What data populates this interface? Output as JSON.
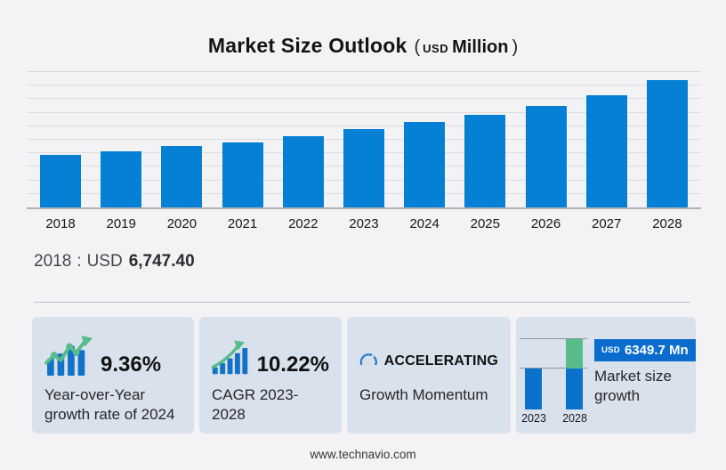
{
  "header": {
    "title": "Market Size Outlook",
    "paren_open": "(",
    "unit_currency": "USD",
    "unit_label": "Million",
    "paren_close": ")"
  },
  "chart_data": {
    "type": "bar",
    "title": "Market Size Outlook (USD Million)",
    "categories": [
      "2018",
      "2019",
      "2020",
      "2021",
      "2022",
      "2023",
      "2024",
      "2025",
      "2026",
      "2027",
      "2028"
    ],
    "values": [
      6747.4,
      7210,
      7890,
      8460,
      9180,
      10133.1,
      11081.6,
      11950,
      13150,
      14470,
      16482.8
    ],
    "xlabel": "",
    "ylabel": "",
    "ylim": [
      0,
      17500
    ],
    "grid": true,
    "legend": false,
    "bar_color": "#0680d4"
  },
  "callout": {
    "year": "2018",
    "separator": ":",
    "currency": "USD",
    "value": "6,747.40"
  },
  "cards": [
    {
      "icon": "bars-uptrend-icon",
      "stat": "9.36%",
      "label": "Year-over-Year growth rate of 2024"
    },
    {
      "icon": "ascending-bars-arrow-icon",
      "stat": "10.22%",
      "label": "CAGR 2023-2028"
    },
    {
      "icon": "gauge-icon",
      "stat": "ACCELERATING",
      "label": "Growth Momentum"
    },
    {
      "icon": "growth-comparison-bars-icon",
      "badge_currency": "USD",
      "badge_value": "6349.7 Mn",
      "label": "Market size growth",
      "mini_chart": {
        "type": "bar",
        "years": [
          "2023",
          "2028"
        ],
        "base_value": 10133.1,
        "end_value": 16482.8,
        "growth": 6349.7
      }
    }
  ],
  "footer": {
    "url": "www.technavio.com"
  },
  "colors": {
    "page_bg": "#f3f3f5",
    "bar_blue": "#0680d4",
    "icon_blue": "#1172c8",
    "mini_bar_blue": "#0b72cc",
    "accent_green": "#57bb8a",
    "badge_blue": "#0a6dce",
    "card_bg": "#d8e1ec",
    "grid_line": "#dddde1",
    "axis_line": "#b0b0b6",
    "text_dark": "#141414"
  }
}
